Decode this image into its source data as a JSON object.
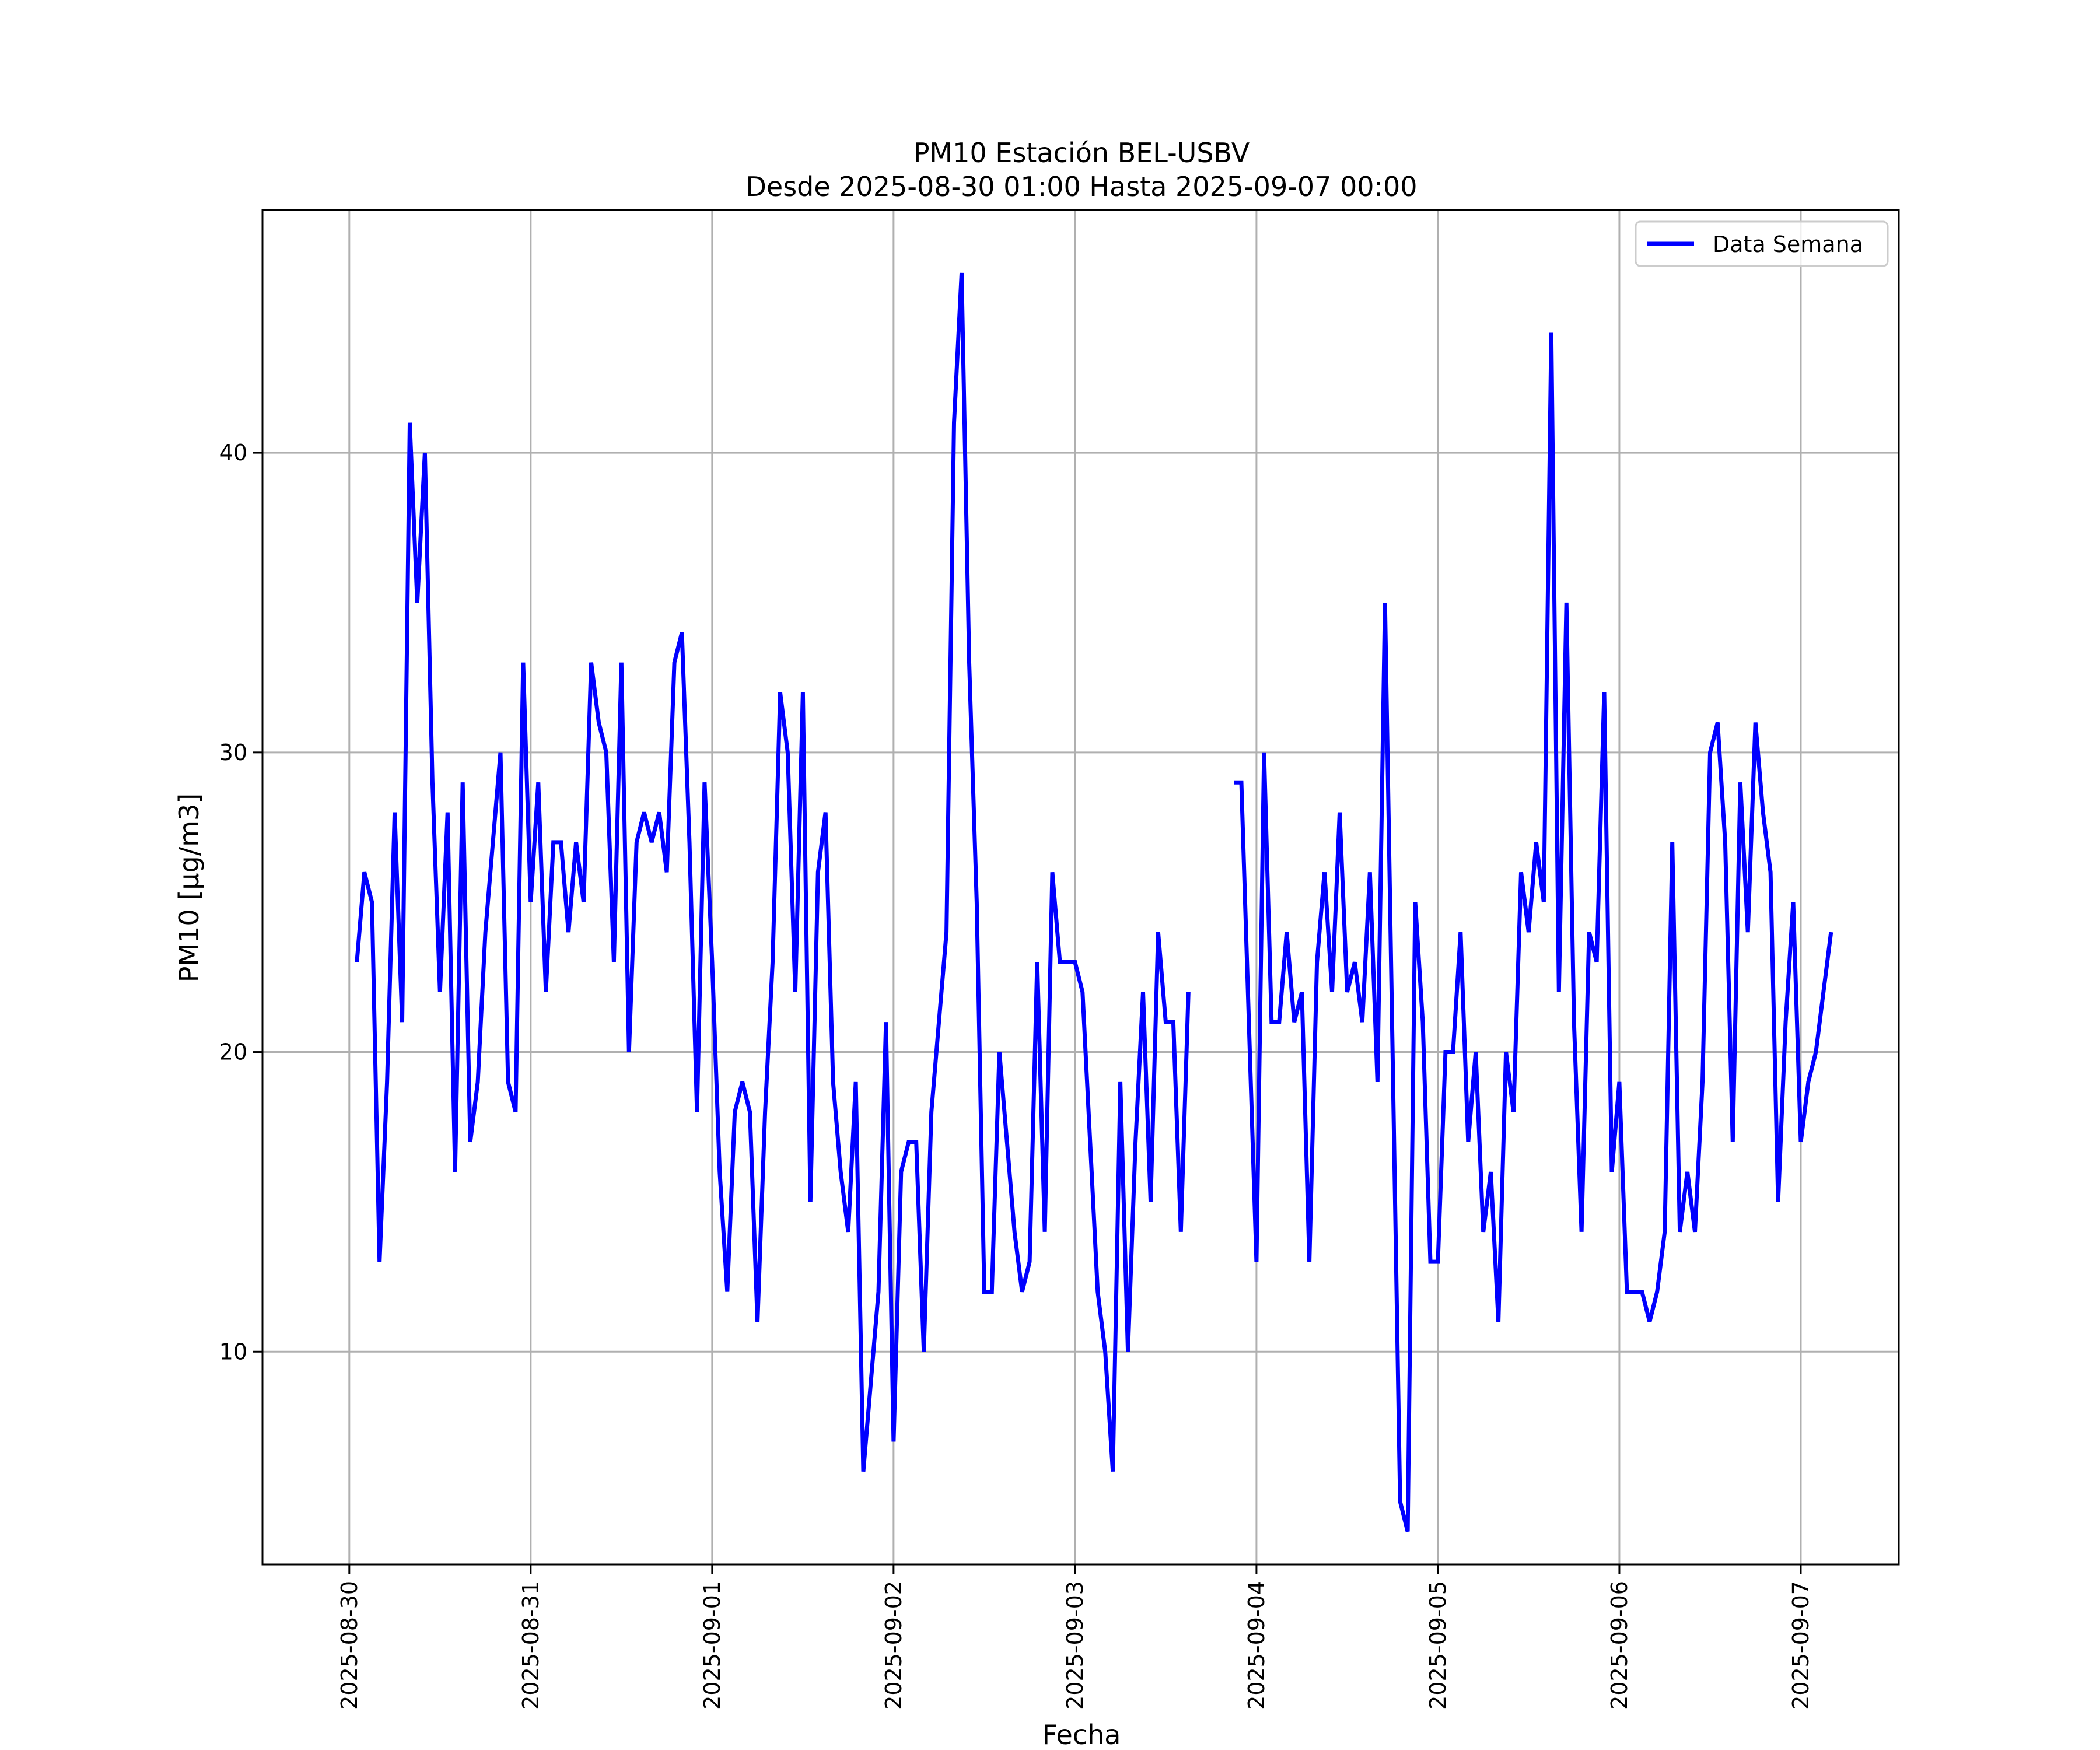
{
  "chart_data": {
    "type": "line",
    "title": "PM10 Estación BEL-USBV",
    "subtitle": "Desde 2025-08-30 01:00 Hasta 2025-09-07 00:00",
    "xlabel": "Fecha",
    "ylabel": "PM10 [μg/m3]",
    "x_start": "2025-08-30 01:00",
    "x_step_hours": 1,
    "xlim": [
      "2025-08-29 12:31",
      "2025-09-07 12:58"
    ],
    "ylim": [
      2.9,
      48.1
    ],
    "x_ticks": [
      "2025-08-30",
      "2025-08-31",
      "2025-09-01",
      "2025-09-02",
      "2025-09-03",
      "2025-09-04",
      "2025-09-05",
      "2025-09-06",
      "2025-09-07"
    ],
    "y_ticks": [
      10,
      20,
      30,
      40
    ],
    "grid": true,
    "legend": {
      "position": "top-right",
      "label": "Data Semana"
    },
    "series": [
      {
        "name": "Data Semana",
        "color": "#0000ff",
        "values": [
          23,
          26,
          25,
          13,
          19,
          28,
          21,
          41,
          35,
          40,
          29,
          22,
          28,
          16,
          29,
          17,
          19,
          24,
          27,
          30,
          19,
          18,
          33,
          25,
          29,
          22,
          27,
          27,
          24,
          27,
          25,
          33,
          31,
          30,
          23,
          33,
          20,
          27,
          28,
          27,
          28,
          26,
          33,
          34,
          27,
          18,
          29,
          23,
          16,
          12,
          18,
          19,
          18,
          11,
          18,
          23,
          32,
          30,
          22,
          32,
          15,
          26,
          28,
          19,
          16,
          14,
          19,
          6,
          9,
          12,
          21,
          7,
          16,
          17,
          17,
          10,
          18,
          21,
          24,
          41,
          46,
          33,
          25,
          12,
          12,
          20,
          17,
          14,
          12,
          13,
          23,
          14,
          26,
          23,
          23,
          23,
          22,
          17,
          12,
          10,
          6,
          19,
          10,
          17,
          22,
          15,
          24,
          21,
          21,
          14,
          22,
          null,
          null,
          null,
          null,
          null,
          29,
          29,
          21,
          13,
          30,
          21,
          21,
          24,
          21,
          22,
          13,
          23,
          26,
          22,
          28,
          22,
          23,
          21,
          26,
          19,
          35,
          20,
          5,
          4,
          25,
          21,
          13,
          13,
          20,
          20,
          24,
          17,
          20,
          14,
          16,
          11,
          20,
          18,
          26,
          24,
          27,
          25,
          44,
          22,
          35,
          21,
          14,
          24,
          23,
          32,
          16,
          19,
          12,
          12,
          12,
          11,
          12,
          14,
          27,
          14,
          16,
          14,
          19,
          30,
          31,
          27,
          17,
          29,
          24,
          31,
          28,
          26,
          15,
          21,
          25,
          17,
          19,
          20,
          22,
          24
        ]
      }
    ]
  }
}
